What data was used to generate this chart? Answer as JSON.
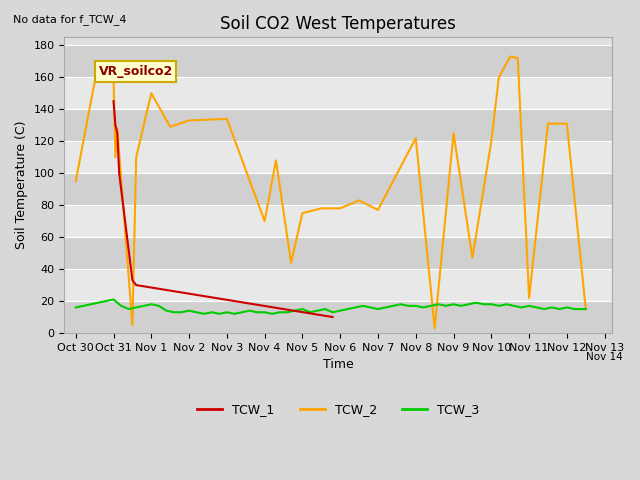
{
  "title": "Soil CO2 West Temperatures",
  "xlabel": "Time",
  "ylabel": "Soil Temperature (C)",
  "no_data_text": "No data for f_TCW_4",
  "annotation_text": "VR_soilco2",
  "ylim": [
    0,
    185
  ],
  "yticks": [
    0,
    20,
    40,
    60,
    80,
    100,
    120,
    140,
    160,
    180
  ],
  "tcw1_color": "#cc0000",
  "tcw2_color": "#ffa500",
  "tcw3_color": "#00cc00",
  "tcw1_x": [
    1.0,
    1.05,
    1.1,
    1.15,
    1.5,
    1.6,
    6.8
  ],
  "tcw1_y": [
    145,
    130,
    125,
    100,
    33,
    30,
    10
  ],
  "tcw2_x": [
    0.0,
    0.5,
    1.0,
    1.05,
    1.1,
    1.5,
    1.6,
    2.0,
    2.5,
    3.0,
    4.0,
    5.0,
    5.3,
    5.7,
    6.0,
    6.5,
    7.0,
    7.5,
    8.0,
    9.0,
    9.5,
    10.0,
    10.5,
    11.0,
    11.2,
    11.5,
    11.7,
    12.0,
    12.5,
    13.0,
    13.5
  ],
  "tcw2_y": [
    95,
    157,
    160,
    110,
    128,
    5,
    110,
    150,
    129,
    133,
    134,
    70,
    108,
    44,
    75,
    78,
    78,
    83,
    77,
    122,
    3,
    125,
    47,
    120,
    160,
    173,
    172,
    22,
    131,
    131,
    15
  ],
  "tcw3_x": [
    0.0,
    0.2,
    0.4,
    0.6,
    0.8,
    1.0,
    1.2,
    1.4,
    1.6,
    1.8,
    2.0,
    2.2,
    2.4,
    2.6,
    2.8,
    3.0,
    3.2,
    3.4,
    3.6,
    3.8,
    4.0,
    4.2,
    4.4,
    4.6,
    4.8,
    5.0,
    5.2,
    5.4,
    5.6,
    5.8,
    6.0,
    6.2,
    6.4,
    6.6,
    6.8,
    7.0,
    7.2,
    7.4,
    7.6,
    7.8,
    8.0,
    8.2,
    8.4,
    8.6,
    8.8,
    9.0,
    9.2,
    9.4,
    9.6,
    9.8,
    10.0,
    10.2,
    10.4,
    10.6,
    10.8,
    11.0,
    11.2,
    11.4,
    11.6,
    11.8,
    12.0,
    12.2,
    12.4,
    12.6,
    12.8,
    13.0,
    13.2,
    13.5
  ],
  "tcw3_y": [
    16,
    17,
    18,
    19,
    20,
    21,
    17,
    15,
    16,
    17,
    18,
    17,
    14,
    13,
    13,
    14,
    13,
    12,
    13,
    12,
    13,
    12,
    13,
    14,
    13,
    13,
    12,
    13,
    13,
    14,
    15,
    13,
    14,
    15,
    13,
    14,
    15,
    16,
    17,
    16,
    15,
    16,
    17,
    18,
    17,
    17,
    16,
    17,
    18,
    17,
    18,
    17,
    18,
    19,
    18,
    18,
    17,
    18,
    17,
    16,
    17,
    16,
    15,
    16,
    15,
    16,
    15,
    15
  ],
  "xtick_positions": [
    0,
    1,
    2,
    3,
    4,
    5,
    6,
    7,
    8,
    9,
    10,
    11,
    12,
    13,
    14
  ],
  "xtick_labels": [
    "Oct 30",
    "Oct 31",
    "Nov 1",
    "Nov 2",
    "Nov 3",
    "Nov 4",
    "Nov 5",
    "Nov 6",
    "Nov 7",
    "Nov 8",
    "Nov 9",
    "Nov 10",
    "Nov 11",
    "Nov 12",
    "Nov 13"
  ],
  "legend_labels": [
    "TCW_1",
    "TCW_2",
    "TCW_3"
  ],
  "linewidth": 1.5
}
